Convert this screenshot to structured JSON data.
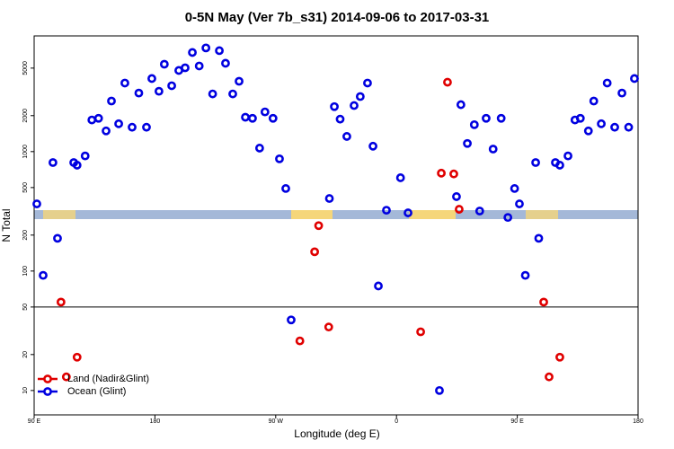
{
  "chart_data": {
    "type": "scatter",
    "title": "0-5N May (Ver 7b_s31)   2014-09-06 to 2017-03-31",
    "x_label": "Longitude (deg E)",
    "y_label": "N Total",
    "log_y": true,
    "legend": "bottom-left",
    "reference_line": 50,
    "xlim": [
      90,
      540
    ],
    "xticks": [
      {
        "value": 90,
        "label": "90 E"
      },
      180,
      {
        "value": 270,
        "label": "90 W"
      },
      {
        "value": 360,
        "label": "0"
      },
      {
        "value": 450,
        "label": "90 E"
      },
      {
        "value": 540,
        "label": "180"
      }
    ],
    "ylim": [
      6.25,
      9300
    ],
    "yticks": [
      10,
      20,
      50,
      100,
      200,
      500,
      1000,
      2000,
      5000
    ],
    "series": [
      {
        "name": "Land (Nadir&Glint)",
        "color": "#e00000",
        "x": [
          110,
          122,
          114,
          288,
          299,
          302,
          309.5,
          378,
          393.4,
          398,
          402.7,
          406.7,
          469.7,
          473.7,
          481.7
        ],
        "values": [
          55,
          19,
          13,
          26,
          145,
          240,
          34,
          31,
          660,
          3810,
          650,
          329,
          55,
          13,
          19
        ]
      },
      {
        "name": "Ocean (Glint)",
        "color": "#0000e0",
        "x": [
          92,
          96.7,
          104,
          107.4,
          119.5,
          122,
          128,
          133,
          138,
          143.6,
          147.6,
          153,
          157.6,
          163,
          168,
          173.7,
          177.7,
          183,
          187,
          192.5,
          197.8,
          202.5,
          207.9,
          213,
          218,
          223,
          228,
          232.6,
          238,
          242.7,
          247.4,
          252.7,
          258,
          262,
          268,
          272.8,
          277.5,
          281.5,
          310,
          313.7,
          318,
          323,
          328.4,
          333,
          338.4,
          342.5,
          346.5,
          352.5,
          363,
          368.6,
          392,
          404.7,
          408,
          412.8,
          418,
          422,
          426.8,
          432,
          438,
          443,
          448,
          451.6,
          456,
          463.7,
          466,
          478.4,
          481.7,
          487.8,
          493,
          497,
          503,
          507,
          512.6,
          517,
          522.6,
          528,
          533,
          537.3
        ],
        "values": [
          365,
          92,
          810,
          188,
          810,
          770,
          920,
          1840,
          1900,
          1490,
          2650,
          1710,
          3750,
          1600,
          3090,
          1600,
          4090,
          3200,
          5390,
          3560,
          4780,
          5030,
          6760,
          5210,
          7380,
          3040,
          7000,
          5490,
          3040,
          3880,
          1940,
          1900,
          1070,
          2150,
          1900,
          870,
          491,
          39,
          405,
          2380,
          1870,
          1340,
          2430,
          2890,
          3750,
          1110,
          75,
          323,
          604,
          307,
          10,
          420,
          2470,
          1170,
          1680,
          318,
          1900,
          1050,
          1900,
          281,
          491,
          365,
          92,
          810,
          188,
          810,
          770,
          920,
          1840,
          1900,
          1490,
          2650,
          1710,
          3750,
          1600,
          3090,
          1600,
          4090
        ]
      }
    ]
  }
}
